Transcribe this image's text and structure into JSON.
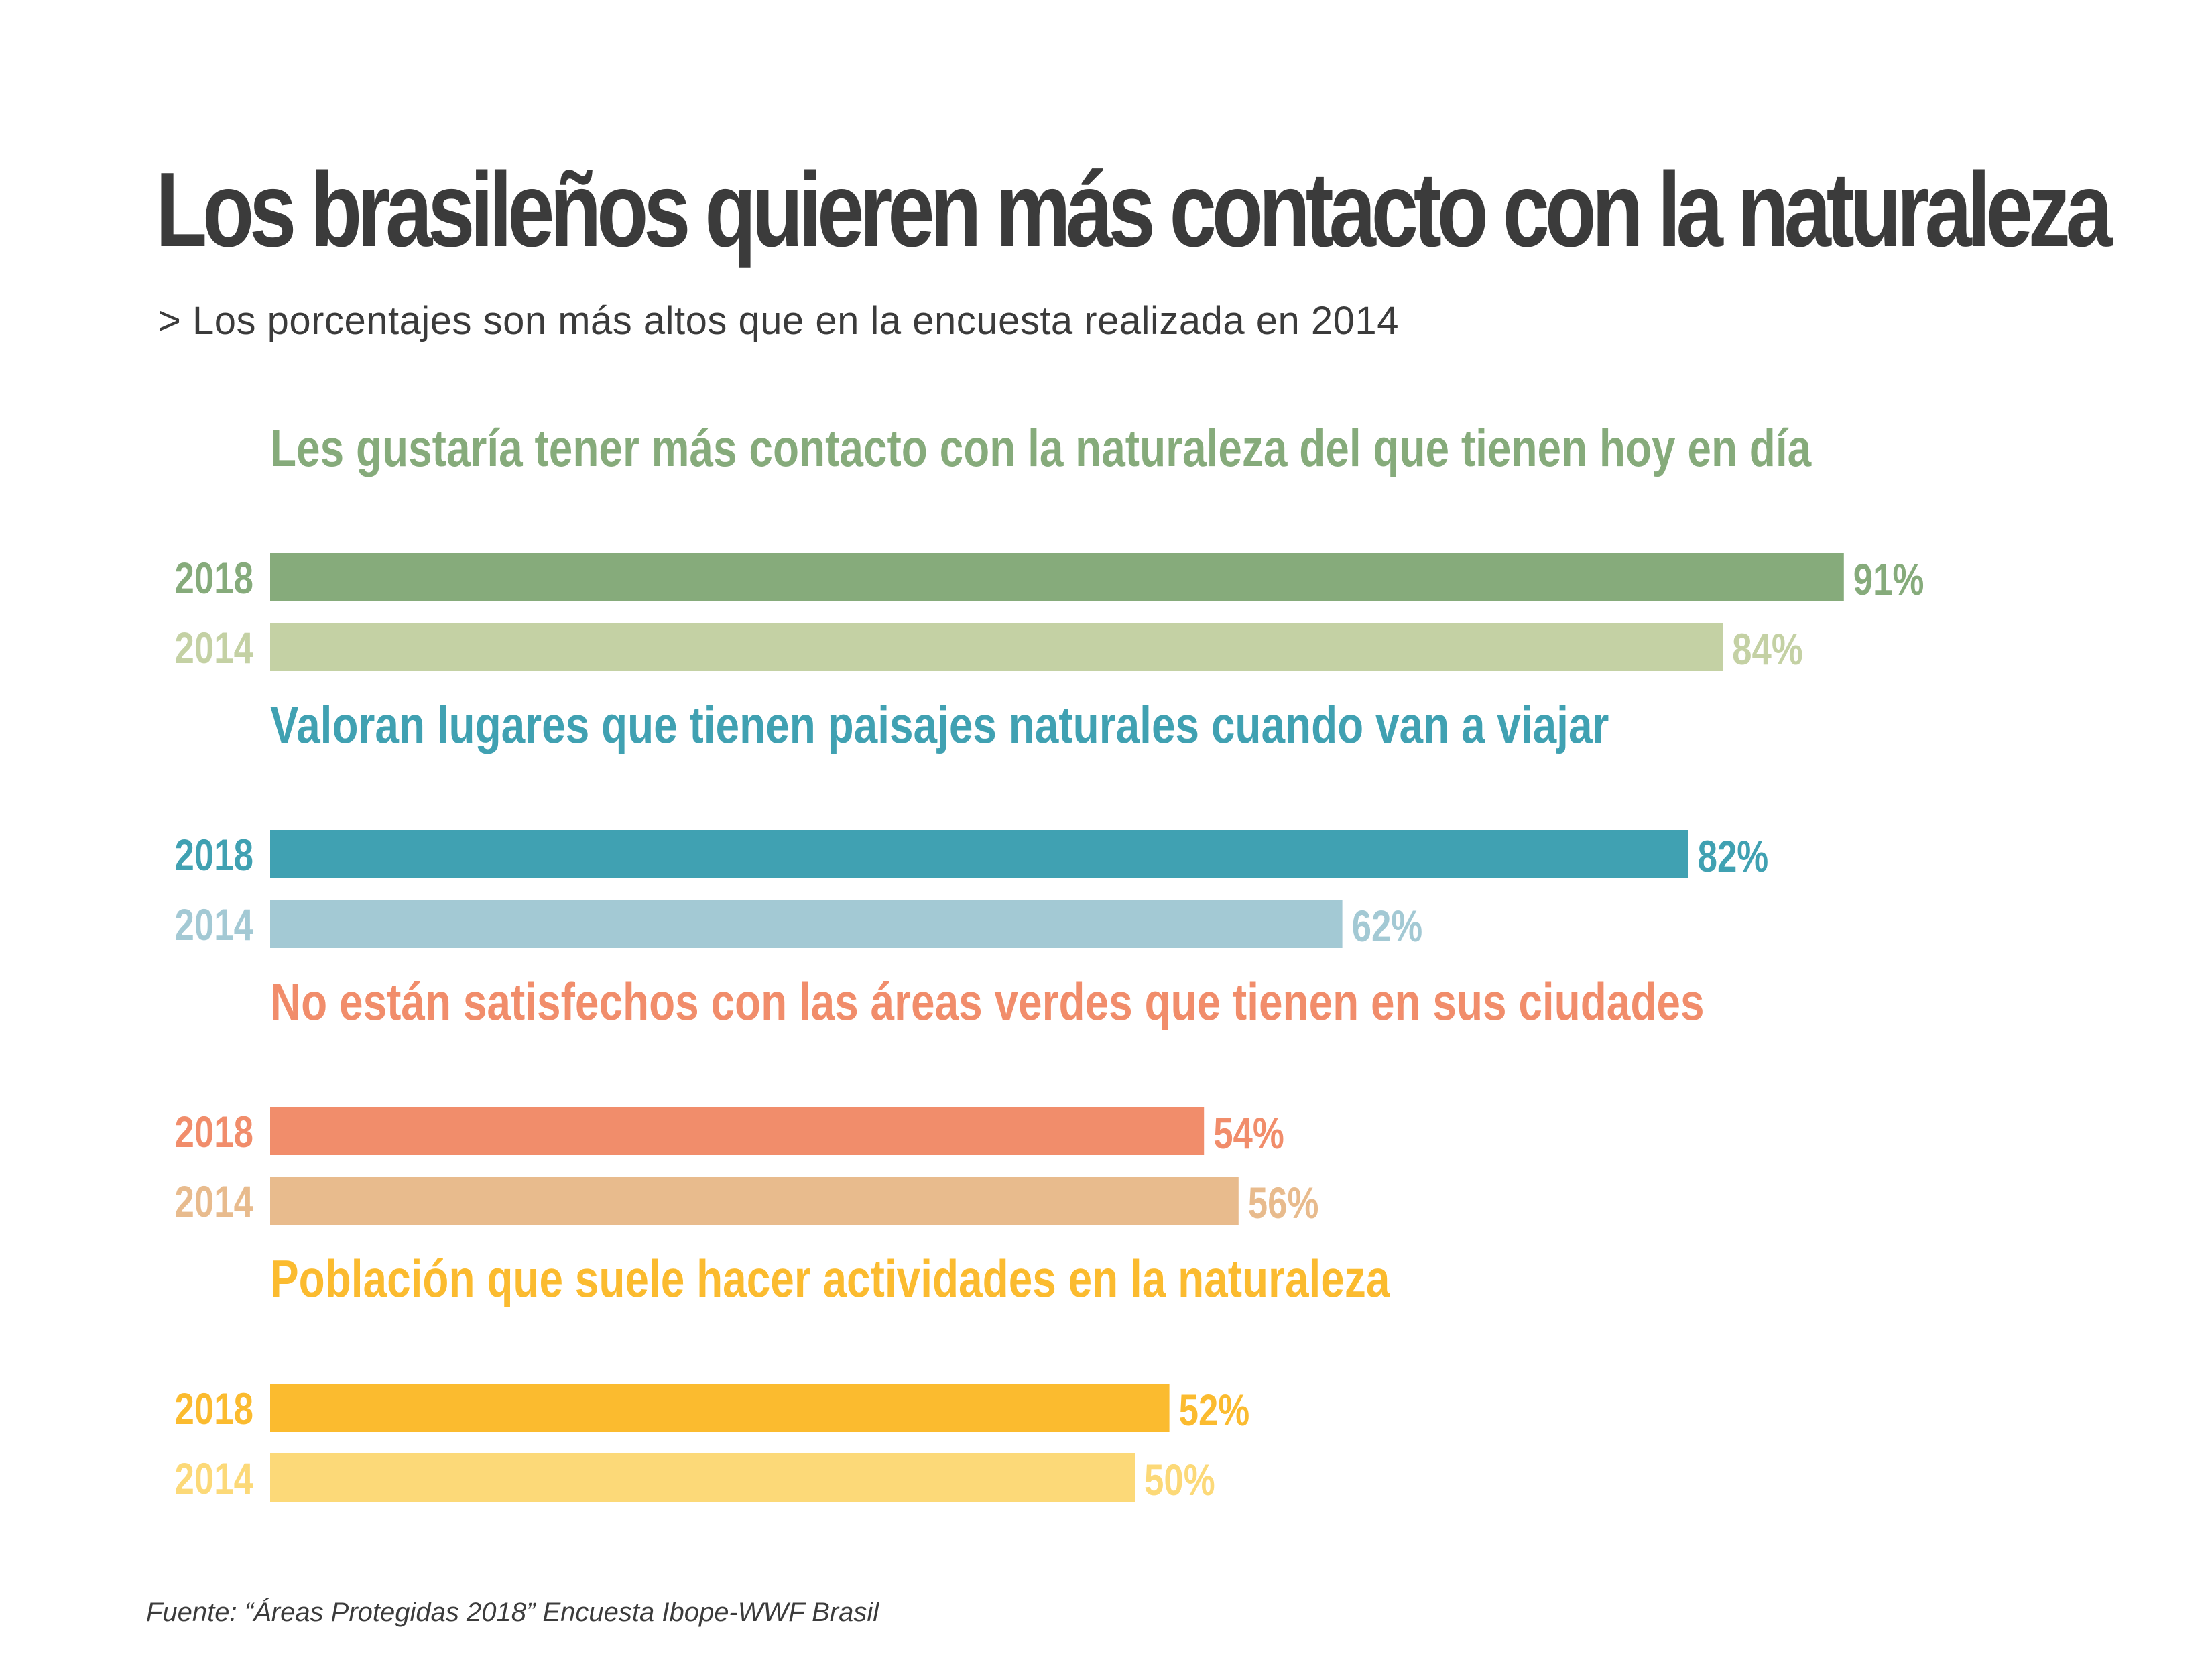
{
  "chart_data": {
    "type": "bar",
    "title": "Los brasileños quieren más contacto con la naturaleza",
    "subtitle": "> Los porcentajes son más altos que en la encuesta realizada en 2014",
    "source": "Fuente: “Áreas Protegidas 2018” Encuesta Ibope-WWF Brasil",
    "orientation": "horizontal",
    "xlim": [
      0,
      100
    ],
    "grid": false,
    "series_names": [
      "2018",
      "2014"
    ],
    "groups": [
      {
        "label": "Les gustaría tener más contacto con la naturaleza del que tienen hoy en día",
        "color": "#86ab7b",
        "bars": [
          {
            "year": "2018",
            "value": 91,
            "label": "91%",
            "color": "#86ab7b"
          },
          {
            "year": "2014",
            "value": 84,
            "label": "84%",
            "color": "#c4d1a4"
          }
        ]
      },
      {
        "label": "Valoran lugares que tienen paisajes naturales cuando van a viajar",
        "color": "#40a1b2",
        "bars": [
          {
            "year": "2018",
            "value": 82,
            "label": "82%",
            "color": "#40a1b2"
          },
          {
            "year": "2014",
            "value": 62,
            "label": "62%",
            "color": "#a3c9d4"
          }
        ]
      },
      {
        "label": "No están satisfechos con las áreas verdes que tienen en sus ciudades",
        "color": "#f18d6b",
        "bars": [
          {
            "year": "2018",
            "value": 54,
            "label": "54%",
            "color": "#f18d6b"
          },
          {
            "year": "2014",
            "value": 56,
            "label": "56%",
            "color": "#e8bb8d"
          }
        ]
      },
      {
        "label": "Población que suele hacer actividades en la naturaleza",
        "color": "#fbbb2f",
        "bars": [
          {
            "year": "2018",
            "value": 52,
            "label": "52%",
            "color": "#fbbb2f"
          },
          {
            "year": "2014",
            "value": 50,
            "label": "50%",
            "color": "#fcd978"
          }
        ]
      }
    ]
  }
}
